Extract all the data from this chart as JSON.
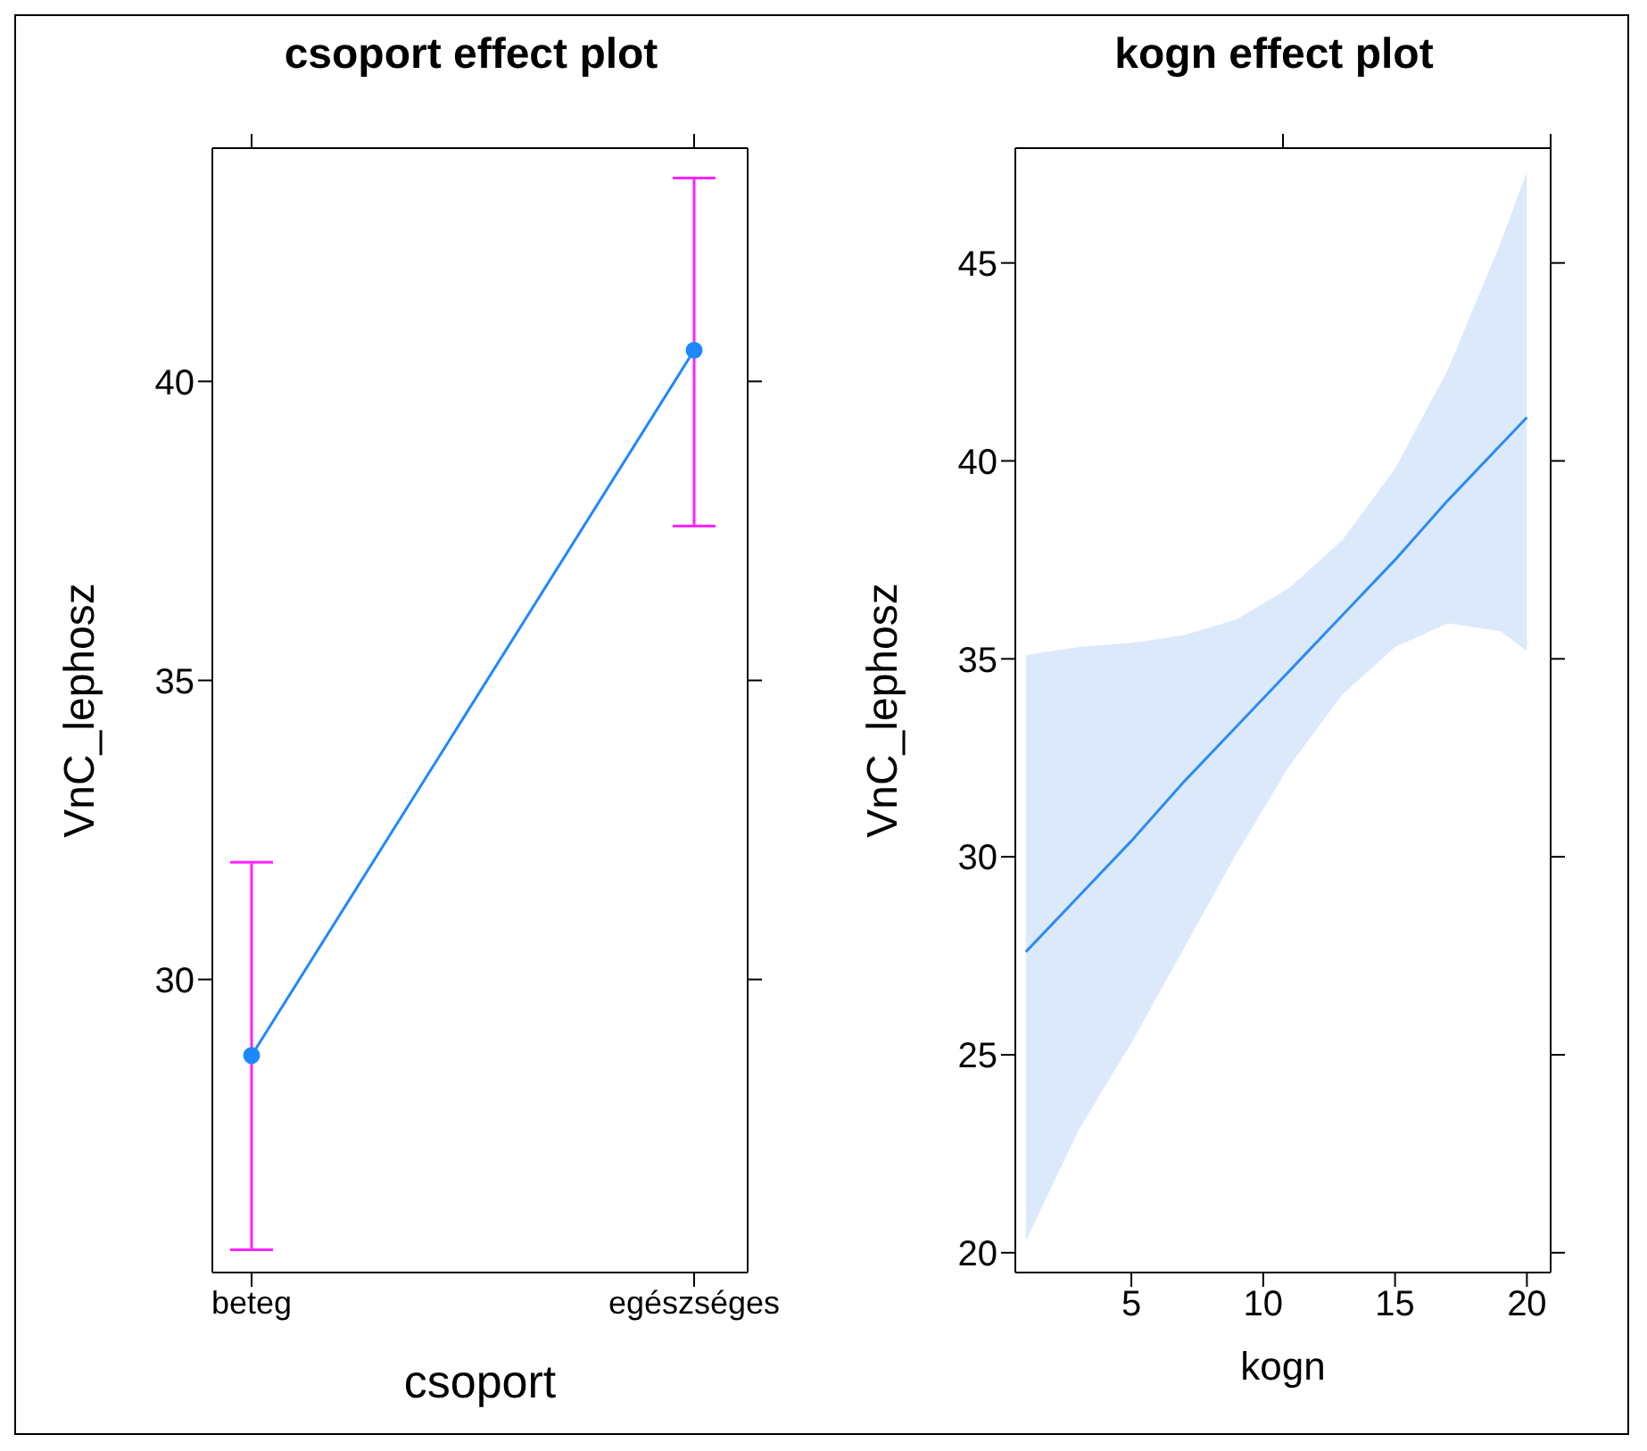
{
  "chart_data": [
    {
      "type": "line",
      "title": "csoport effect plot",
      "xlabel": "csoport",
      "ylabel": "VnC_lephosz",
      "categories": [
        "beteg",
        "egészséges"
      ],
      "series": [
        {
          "color": "#1e88ff",
          "values": [
            28.73,
            40.52
          ],
          "errors": [
            [
              25.48,
              31.96
            ],
            [
              37.58,
              43.4
            ]
          ]
        }
      ],
      "ylim": [
        25.1,
        43.9
      ],
      "yticks": [
        30,
        35,
        40
      ],
      "grid": false,
      "legend": false,
      "marker": "circle"
    },
    {
      "type": "line",
      "title": "kogn effect plot",
      "xlabel": "kogn",
      "ylabel": "VnC_lephosz",
      "series": [
        {
          "color": "#2b8cef",
          "x": [
            1,
            3,
            5,
            7,
            9,
            11,
            13,
            15,
            17,
            19,
            20
          ],
          "values": [
            27.6,
            29.0,
            30.4,
            31.9,
            33.3,
            34.7,
            36.1,
            37.5,
            39.0,
            40.4,
            41.1
          ],
          "lower": [
            20.3,
            23.1,
            25.3,
            27.7,
            30.1,
            32.3,
            34.1,
            35.3,
            35.9,
            35.7,
            35.2
          ],
          "upper": [
            35.1,
            35.3,
            35.4,
            35.6,
            36.0,
            36.8,
            38.0,
            39.8,
            42.3,
            45.5,
            47.3
          ]
        }
      ],
      "xlim": [
        0.6,
        20.9
      ],
      "xticks": [
        5,
        10,
        15,
        20
      ],
      "ylim": [
        19.5,
        47.9
      ],
      "yticks": [
        20,
        25,
        30,
        35,
        40,
        45
      ],
      "grid": false,
      "legend": false,
      "marker": "none"
    }
  ]
}
